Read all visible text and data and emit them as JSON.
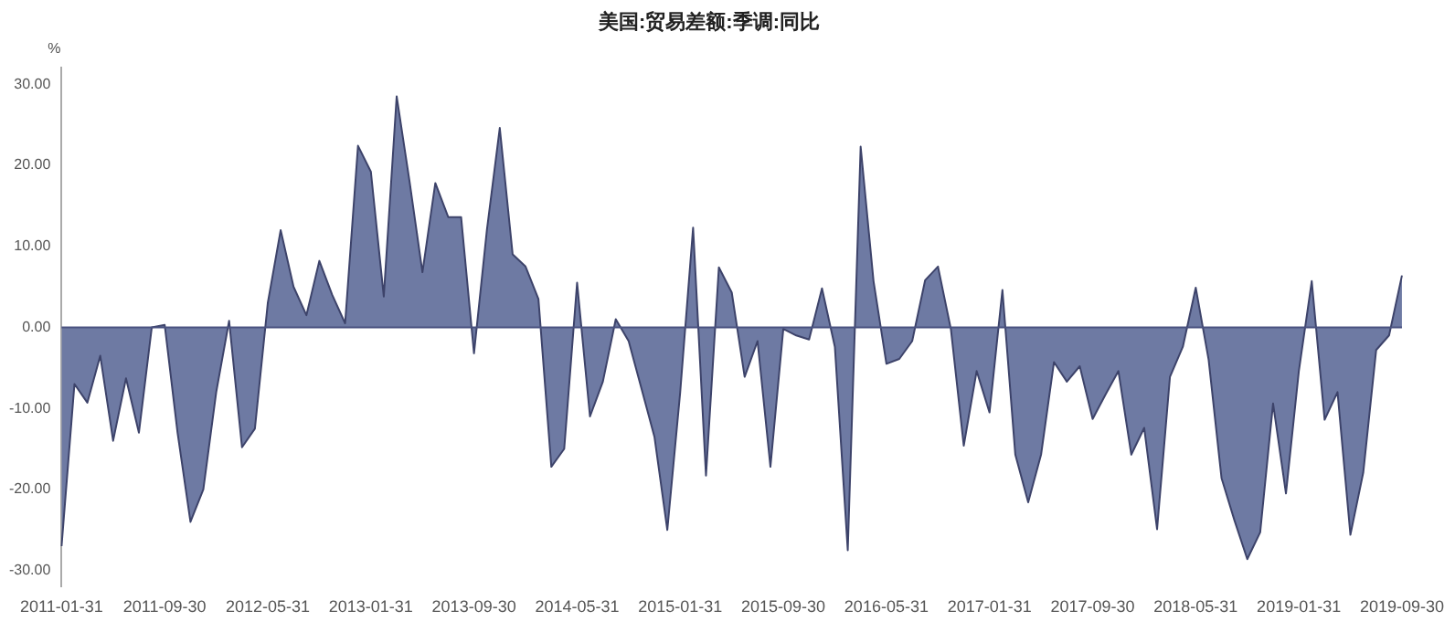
{
  "chart_data": {
    "type": "area",
    "title": "美国:贸易差额:季调:同比",
    "ylabel": "%",
    "categories": [
      "2011-01-31",
      null,
      null,
      null,
      null,
      null,
      null,
      null,
      "2011-09-30",
      null,
      null,
      null,
      null,
      null,
      null,
      null,
      "2012-05-31",
      null,
      null,
      null,
      null,
      null,
      null,
      null,
      "2013-01-31",
      null,
      null,
      null,
      null,
      null,
      null,
      null,
      "2013-09-30",
      null,
      null,
      null,
      null,
      null,
      null,
      null,
      "2014-05-31",
      null,
      null,
      null,
      null,
      null,
      null,
      null,
      "2015-01-31",
      null,
      null,
      null,
      null,
      null,
      null,
      null,
      "2015-09-30",
      null,
      null,
      null,
      null,
      null,
      null,
      null,
      "2016-05-31",
      null,
      null,
      null,
      null,
      null,
      null,
      null,
      "2017-01-31",
      null,
      null,
      null,
      null,
      null,
      null,
      null,
      "2017-09-30",
      null,
      null,
      null,
      null,
      null,
      null,
      null,
      "2018-05-31",
      null,
      null,
      null,
      null,
      null,
      null,
      null,
      "2019-01-31",
      null,
      null,
      null,
      null,
      null,
      null,
      null,
      "2019-09-30"
    ],
    "series": [
      {
        "color": "#6e7aa3",
        "values": [
          -27,
          -7,
          -9.3,
          -3.5,
          -14,
          -6.3,
          -13,
          0,
          0.3,
          -13,
          -24,
          -20,
          -8,
          0.8,
          -14.8,
          -12.5,
          3,
          12,
          5,
          1.5,
          8.2,
          4,
          0.5,
          22.4,
          19.2,
          3.8,
          28.5,
          18,
          6.8,
          17.8,
          13.6,
          13.6,
          -3.2,
          12,
          24.6,
          9,
          7.5,
          3.5,
          -17.2,
          -15,
          5.5,
          -11,
          -6.7,
          1,
          -1.7,
          -7.6,
          -13.5,
          -25,
          -8,
          12.3,
          -18.3,
          7.4,
          4.3,
          -6.1,
          -1.7,
          -17.2,
          -0.2,
          -1,
          -1.5,
          4.8,
          -2.4,
          -27.5,
          22.3,
          5.7,
          -4.5,
          -3.9,
          -1.7,
          5.8,
          7.5,
          -0.2,
          -14.6,
          -5.4,
          -10.5,
          4.6,
          -15.7,
          -21.6,
          -15.7,
          -4.3,
          -6.7,
          -4.8,
          -11.3,
          -8.3,
          -5.4,
          -15.7,
          -12.4,
          -24.9,
          -6.1,
          -2.4,
          4.9,
          -4,
          -18.6,
          -23.8,
          -28.6,
          -25.3,
          -9.4,
          -20.5,
          -5.4,
          5.7,
          -11.4,
          -8,
          -25.6,
          -17.9,
          -2.8,
          -1,
          6.4
        ]
      }
    ],
    "ylim": [
      -32,
      32
    ],
    "yticks": [
      {
        "value": -30,
        "label": "-30.00"
      },
      {
        "value": -20,
        "label": "-20.00"
      },
      {
        "value": -10,
        "label": "-10.00"
      },
      {
        "value": 0,
        "label": "0.00"
      },
      {
        "value": 10,
        "label": "10.00"
      },
      {
        "value": 20,
        "label": "20.00"
      },
      {
        "value": 30,
        "label": "30.00"
      }
    ],
    "ref_lines": [
      {
        "axis": "y",
        "value": 0,
        "color": "#4a5280"
      }
    ],
    "grid": false,
    "legend": false
  }
}
